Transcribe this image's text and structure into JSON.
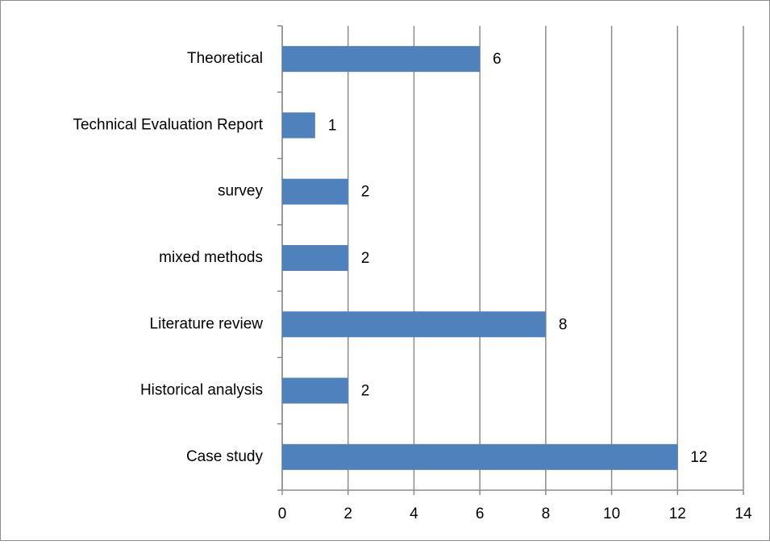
{
  "chart_data": {
    "type": "bar",
    "orientation": "horizontal",
    "categories": [
      "Theoretical",
      "Technical Evaluation Report",
      "survey",
      "mixed methods",
      "Literature review",
      "Historical analysis",
      "Case study"
    ],
    "values": [
      6,
      1,
      2,
      2,
      8,
      2,
      12
    ],
    "color": "#4f81bd",
    "xlim": [
      0,
      14
    ],
    "xticks": [
      0,
      2,
      4,
      6,
      8,
      10,
      12,
      14
    ],
    "grid": true
  }
}
